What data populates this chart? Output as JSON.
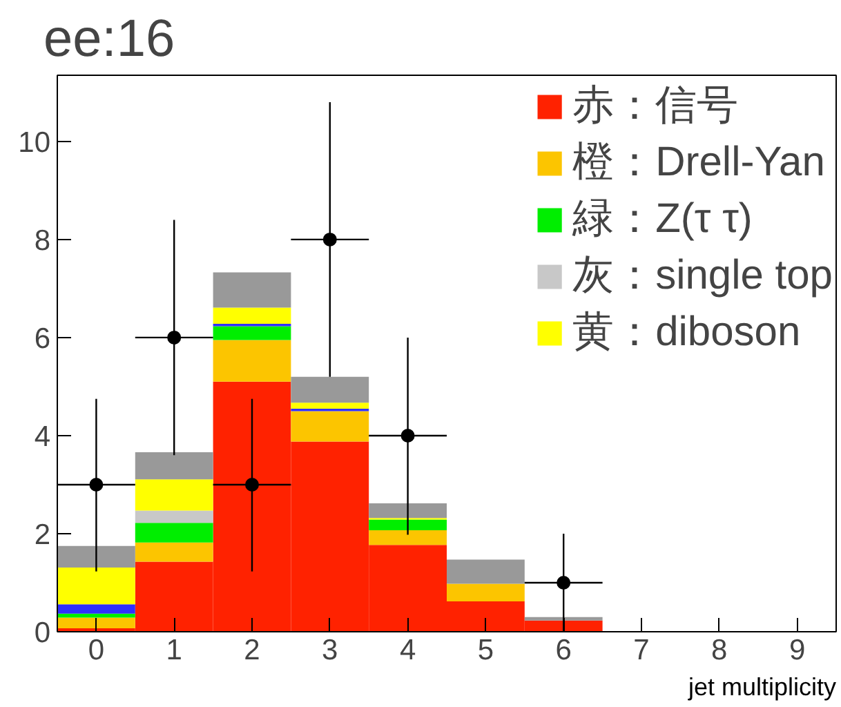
{
  "chart_data": {
    "type": "bar",
    "title": "ee:16",
    "xlabel": "jet multiplicity",
    "stacked": true,
    "legend": "top right",
    "grid": false,
    "marker": "circle",
    "x": [
      0,
      1,
      2,
      3,
      4,
      5,
      6,
      7,
      8,
      9
    ],
    "xlim": [
      -0.5,
      9.5
    ],
    "xticks": [
      0,
      1,
      2,
      3,
      4,
      5,
      6,
      7,
      8,
      9
    ],
    "ylim": [
      0,
      11.35
    ],
    "yticks": [
      0,
      2,
      4,
      6,
      8,
      10
    ],
    "series": [
      {
        "name": "赤：信号",
        "color": "#ff2200",
        "values": [
          0.07,
          1.43,
          5.1,
          3.88,
          1.77,
          0.62,
          0.23,
          null,
          null,
          null
        ]
      },
      {
        "name": "橙：Drell-Yan",
        "color": "#fcc500",
        "values": [
          0.22,
          0.39,
          0.85,
          0.62,
          0.3,
          0.36,
          0,
          0,
          0,
          0
        ]
      },
      {
        "name": "緑：Z(τ τ)",
        "color": "#00ee00",
        "values": [
          0.08,
          0.4,
          0.28,
          0,
          0.22,
          0,
          0,
          0,
          0,
          0
        ]
      },
      {
        "color": "#3030ff",
        "values": [
          0.19,
          0,
          0.05,
          0.05,
          0,
          0,
          0,
          0,
          0,
          0
        ]
      },
      {
        "name": "灰：single top",
        "color": "#c8c8c8",
        "values": [
          0,
          0.25,
          0,
          0,
          0,
          0,
          0,
          0,
          0,
          0
        ]
      },
      {
        "name": "黄：diboson",
        "color": "#ffff00",
        "values": [
          0.75,
          0.64,
          0.33,
          0.12,
          0.03,
          0,
          0,
          0,
          0,
          0
        ]
      },
      {
        "color": "#999999",
        "values": [
          0.44,
          0.55,
          0.72,
          0.53,
          0.3,
          0.49,
          0.07,
          0,
          0,
          0
        ]
      },
      {
        "type": "scatter",
        "color": "#000000",
        "x": [
          0,
          1,
          2,
          3,
          4,
          6
        ],
        "values": [
          3,
          6,
          3,
          8,
          4,
          1
        ],
        "errors": [
          [
            1.23,
            4.75
          ],
          [
            3.6,
            8.4
          ],
          [
            1.23,
            4.75
          ],
          [
            5.2,
            10.8
          ],
          [
            1.98,
            6.0
          ],
          [
            0,
            2.0
          ]
        ],
        "xerrors": [
          0.5,
          0.5,
          0.5,
          0.5,
          0.5,
          0.5
        ]
      }
    ]
  }
}
